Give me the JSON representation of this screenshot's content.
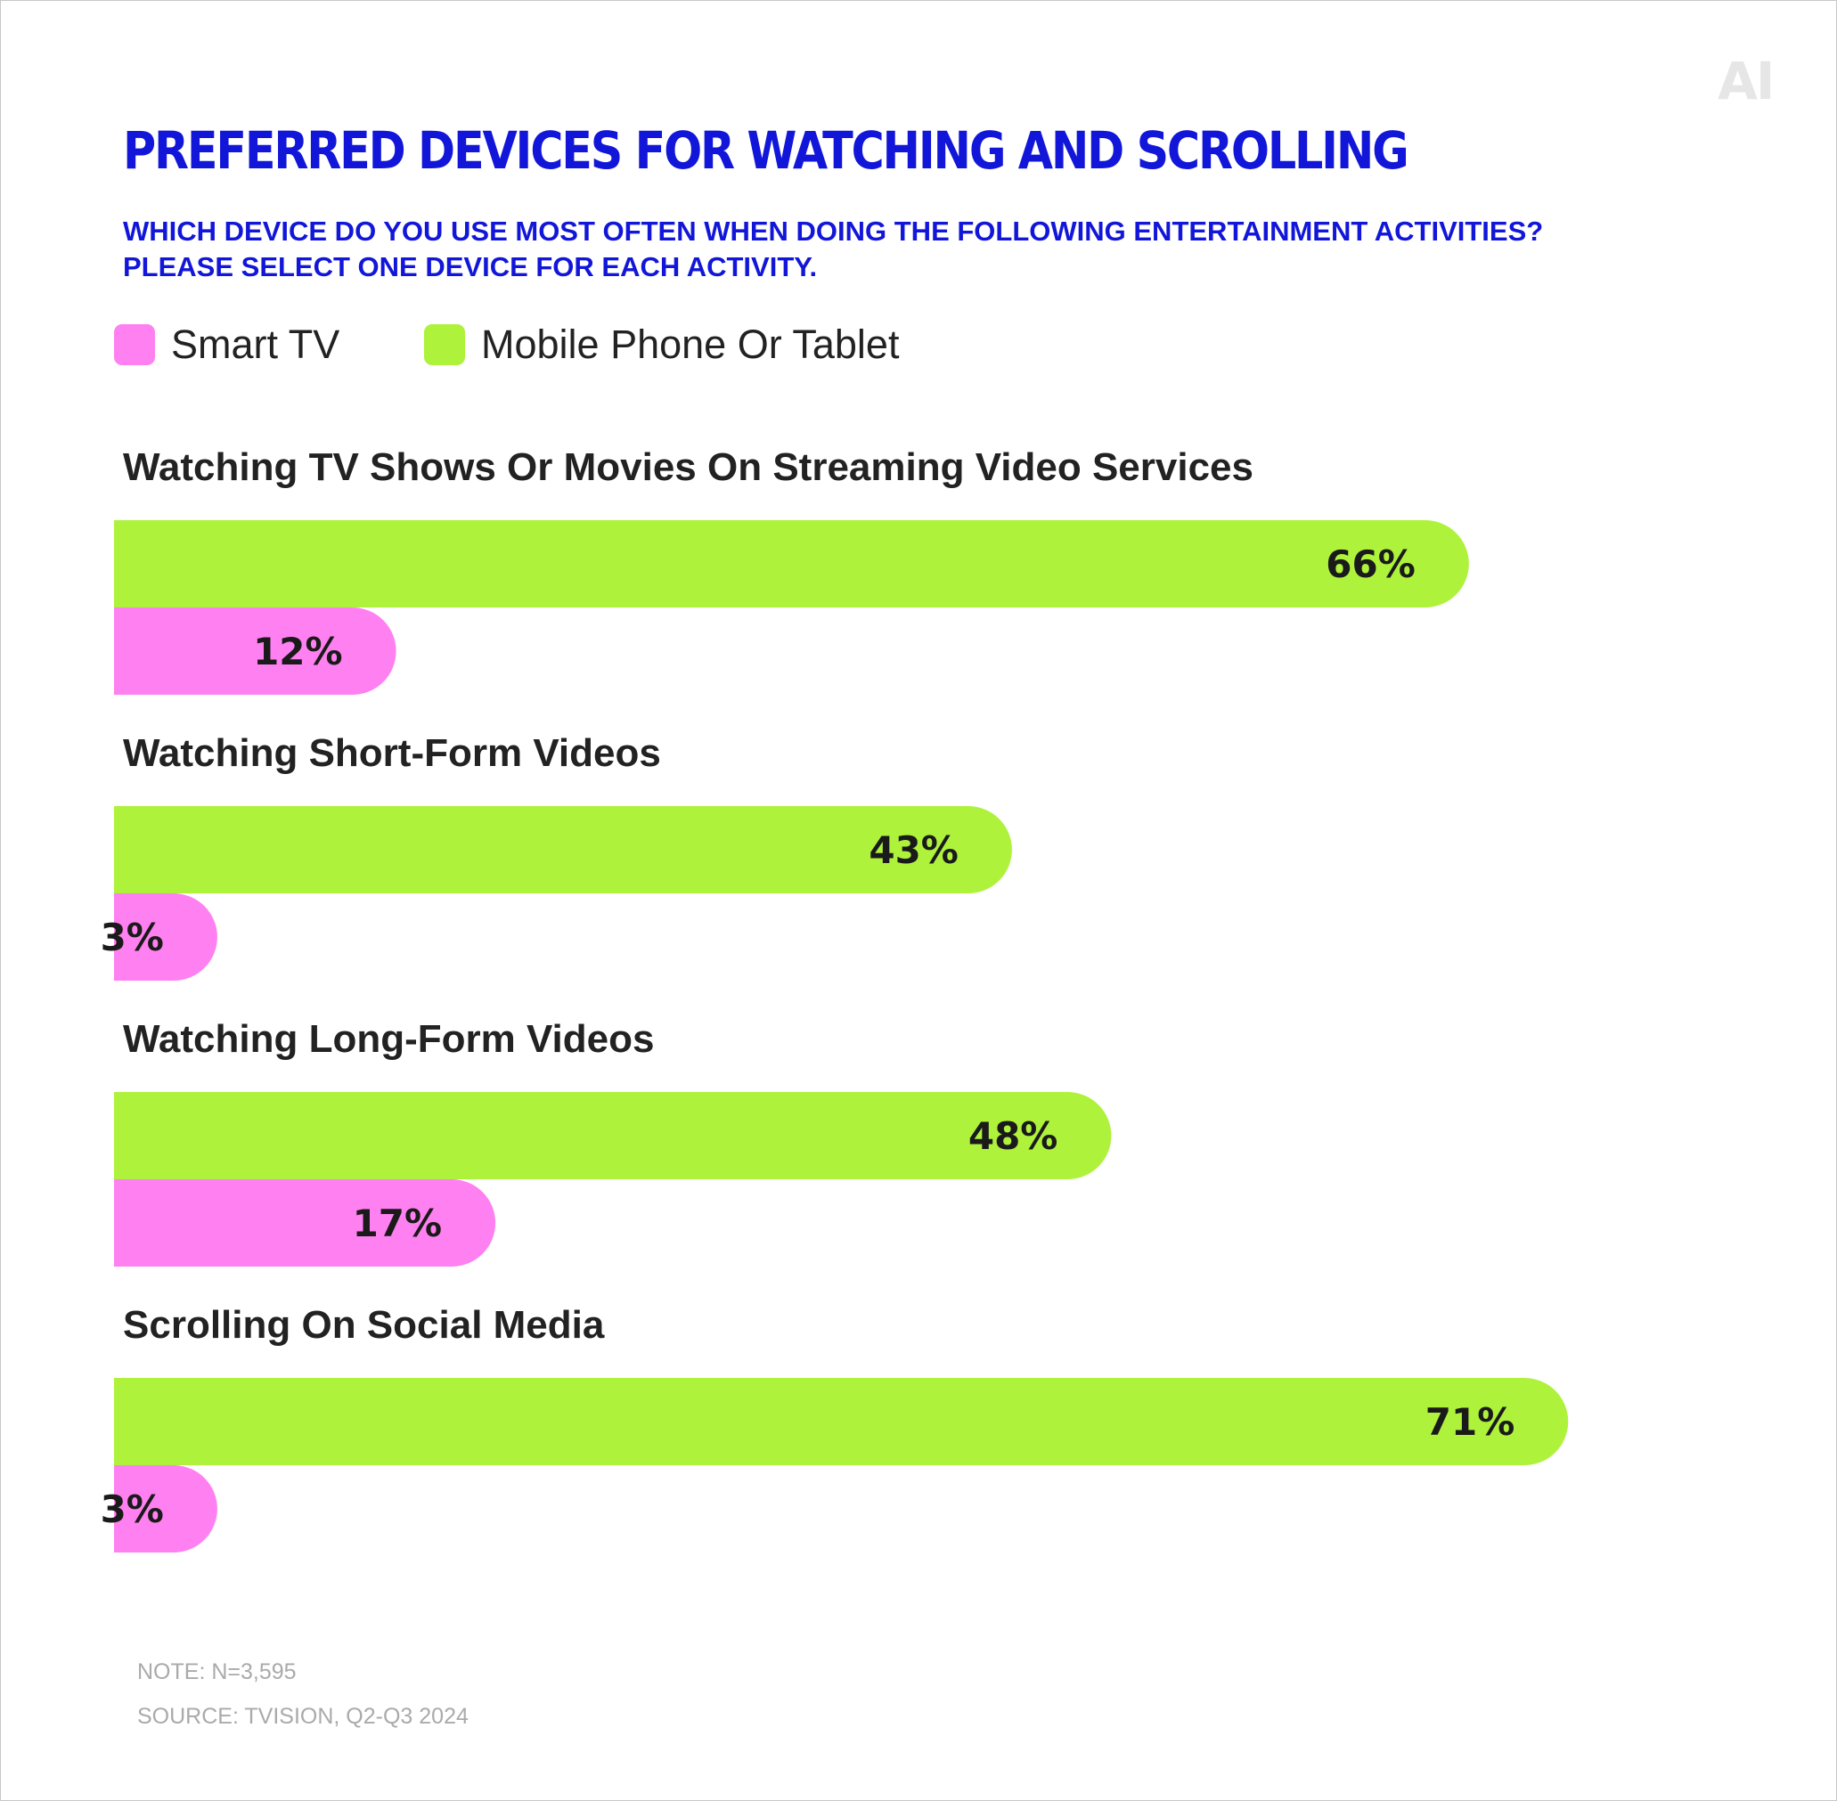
{
  "logo": "AI",
  "chart_data": {
    "type": "bar",
    "orientation": "horizontal",
    "title": "PREFERRED DEVICES FOR WATCHING AND SCROLLING",
    "subtitle": "WHICH DEVICE DO YOU USE MOST OFTEN WHEN DOING THE FOLLOWING ENTERTAINMENT ACTIVITIES? PLEASE SELECT ONE DEVICE FOR EACH ACTIVITY.",
    "legend_position": "top-left",
    "grid": false,
    "xlim": [
      0,
      100
    ],
    "categories": [
      "Watching TV Shows Or Movies On Streaming Video Services",
      "Watching Short-Form Videos",
      "Watching Long-Form Videos",
      "Scrolling On Social Media"
    ],
    "series": [
      {
        "name": "Mobile Phone Or Tablet",
        "color": "#aef23c",
        "values": [
          66,
          43,
          48,
          71
        ],
        "labels": [
          "66%",
          "43%",
          "48%",
          "71%"
        ]
      },
      {
        "name": "Smart TV",
        "color": "#ff80f0",
        "values": [
          12,
          3,
          17,
          3
        ],
        "labels": [
          "12%",
          "3%",
          "17%",
          "3%"
        ]
      }
    ]
  },
  "legend": [
    {
      "label": "Smart TV",
      "color": "#ff80f0"
    },
    {
      "label": "Mobile Phone Or Tablet",
      "color": "#aef23c"
    }
  ],
  "note": "NOTE: N=3,595",
  "source": "SOURCE: TVISION, Q2-Q3 2024"
}
